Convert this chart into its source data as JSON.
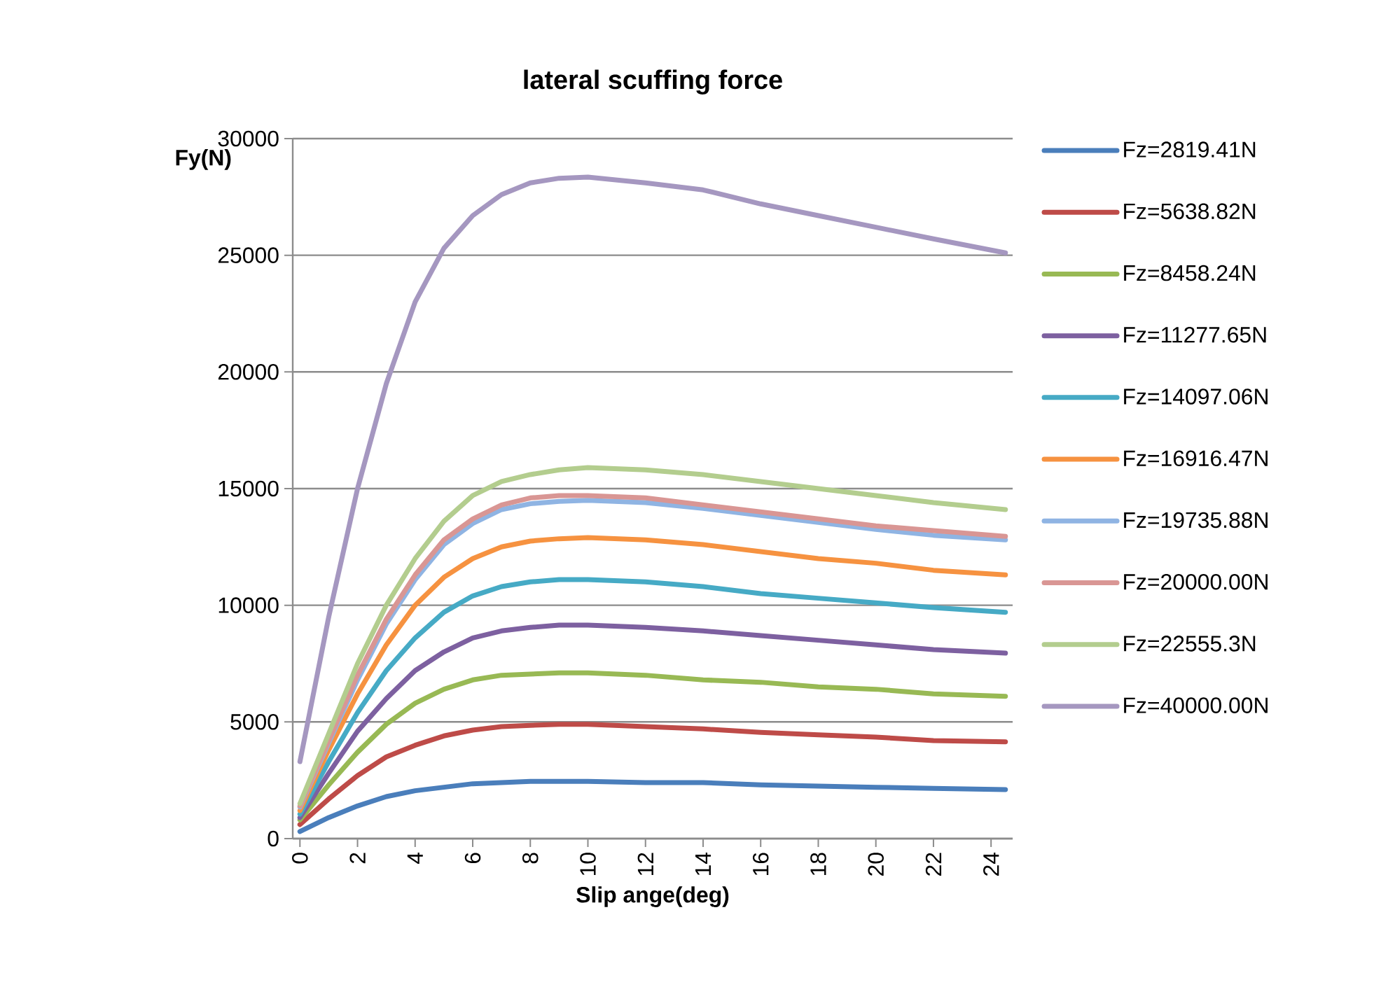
{
  "chart_data": {
    "type": "line",
    "title": "lateral scuffing force",
    "xlabel": "Slip ange(deg)",
    "ylabel": "Fy(N)",
    "x": [
      0,
      1,
      2,
      3,
      4,
      5,
      6,
      7,
      8,
      9,
      10,
      12,
      14,
      16,
      18,
      20,
      22,
      24.5
    ],
    "xlim": [
      -0.25,
      24.75
    ],
    "xticks": [
      0,
      2,
      4,
      6,
      8,
      10,
      12,
      14,
      16,
      18,
      20,
      22,
      24
    ],
    "ylim": [
      0,
      30000
    ],
    "yticks": [
      0,
      5000,
      10000,
      15000,
      20000,
      25000,
      30000
    ],
    "grid": "y",
    "legend": "right",
    "marker": "none",
    "line_style": "solid",
    "series": [
      {
        "name": "Fz=2819.41N",
        "color": "#4a7ebb",
        "values": [
          300,
          900,
          1400,
          1800,
          2050,
          2200,
          2350,
          2400,
          2450,
          2450,
          2450,
          2400,
          2400,
          2300,
          2250,
          2200,
          2150,
          2100
        ]
      },
      {
        "name": "Fz=5638.82N",
        "color": "#be4b48",
        "values": [
          600,
          1700,
          2700,
          3500,
          4000,
          4400,
          4650,
          4800,
          4850,
          4900,
          4900,
          4800,
          4700,
          4550,
          4450,
          4350,
          4200,
          4150
        ]
      },
      {
        "name": "Fz=8458.24N",
        "color": "#98b954",
        "values": [
          800,
          2300,
          3700,
          4900,
          5800,
          6400,
          6800,
          7000,
          7050,
          7100,
          7100,
          7000,
          6800,
          6700,
          6500,
          6400,
          6200,
          6100
        ]
      },
      {
        "name": "Fz=11277.65N",
        "color": "#7d60a0",
        "values": [
          900,
          2800,
          4600,
          6000,
          7200,
          8000,
          8600,
          8900,
          9050,
          9150,
          9150,
          9050,
          8900,
          8700,
          8500,
          8300,
          8100,
          7950
        ]
      },
      {
        "name": "Fz=14097.06N",
        "color": "#46aac5",
        "values": [
          1050,
          3300,
          5400,
          7200,
          8600,
          9700,
          10400,
          10800,
          11000,
          11100,
          11100,
          11000,
          10800,
          10500,
          10300,
          10100,
          9900,
          9700
        ]
      },
      {
        "name": "Fz=16916.47N",
        "color": "#f69240",
        "values": [
          1200,
          3800,
          6200,
          8300,
          10000,
          11200,
          12000,
          12500,
          12750,
          12850,
          12900,
          12800,
          12600,
          12300,
          12000,
          11800,
          11500,
          11300
        ]
      },
      {
        "name": "Fz=19735.88N",
        "color": "#8fb4e3",
        "values": [
          1350,
          4100,
          6800,
          9200,
          11100,
          12600,
          13500,
          14100,
          14350,
          14450,
          14500,
          14400,
          14150,
          13850,
          13550,
          13250,
          13000,
          12800
        ]
      },
      {
        "name": "Fz=20000.00N",
        "color": "#d99694",
        "values": [
          1400,
          4200,
          7000,
          9400,
          11300,
          12800,
          13700,
          14300,
          14600,
          14700,
          14700,
          14600,
          14300,
          14000,
          13700,
          13400,
          13200,
          12950
        ]
      },
      {
        "name": "Fz=22555.3N",
        "color": "#b3cd8e",
        "values": [
          1500,
          4500,
          7500,
          10000,
          12000,
          13600,
          14700,
          15300,
          15600,
          15800,
          15900,
          15800,
          15600,
          15300,
          15000,
          14700,
          14400,
          14100
        ]
      },
      {
        "name": "Fz=40000.00N",
        "color": "#a597c0",
        "values": [
          3300,
          9500,
          15000,
          19500,
          23000,
          25300,
          26700,
          27600,
          28100,
          28300,
          28350,
          28100,
          27800,
          27200,
          26700,
          26200,
          25700,
          25100
        ]
      }
    ]
  }
}
